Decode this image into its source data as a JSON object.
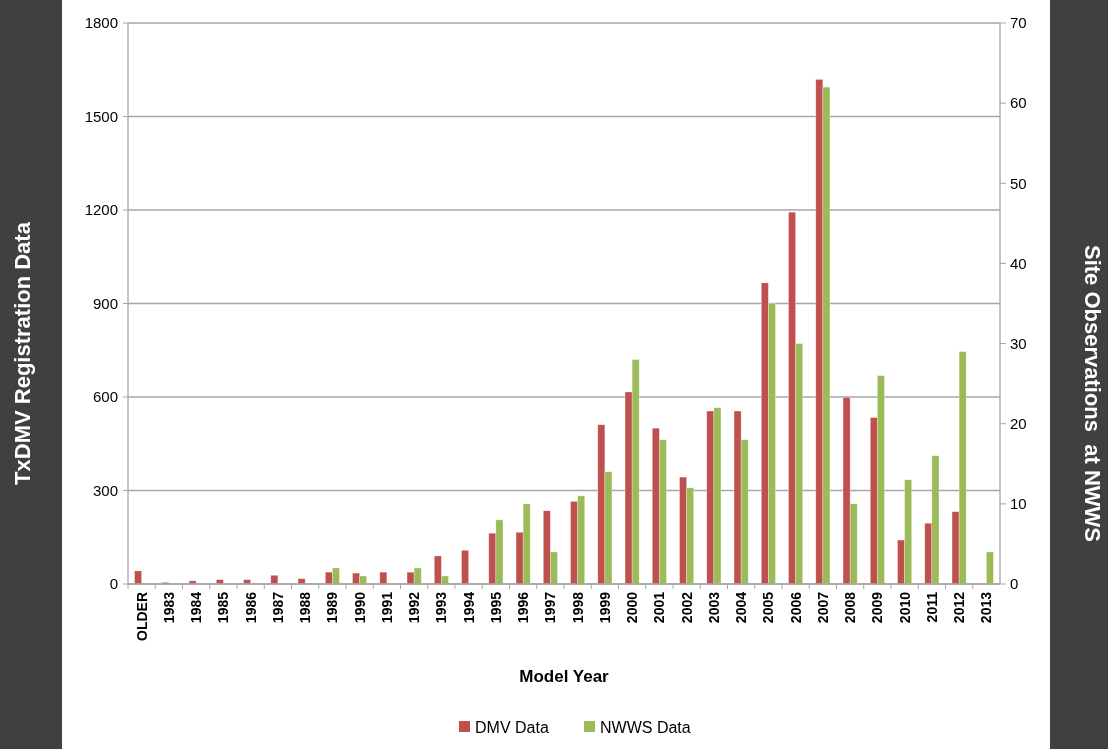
{
  "chart_data": {
    "type": "bar",
    "xlabel": "Model Year",
    "ylabel": "TxDMV Registration Data",
    "y2label": "Site Observations  at NWWS",
    "categories": [
      "OLDER",
      "1983",
      "1984",
      "1985",
      "1986",
      "1987",
      "1988",
      "1989",
      "1990",
      "1991",
      "1992",
      "1993",
      "1994",
      "1995",
      "1996",
      "1997",
      "1998",
      "1999",
      "2000",
      "2001",
      "2002",
      "2003",
      "2004",
      "2005",
      "2006",
      "2007",
      "2008",
      "2009",
      "2010",
      "2011",
      "2012",
      "2013"
    ],
    "series": [
      {
        "name": "DMV Data",
        "color": "#c0504d",
        "values": [
          42,
          5,
          10,
          14,
          14,
          28,
          17,
          38,
          35,
          38,
          38,
          90,
          108,
          163,
          166,
          235,
          265,
          511,
          616,
          500,
          343,
          555,
          555,
          966,
          1193,
          1619,
          599,
          534,
          141,
          195,
          232,
          null
        ]
      },
      {
        "name": "NWWS Data",
        "color": "#9bbb59",
        "axis": "y2",
        "values": [
          null,
          null,
          null,
          null,
          null,
          null,
          null,
          2,
          1,
          null,
          2,
          1,
          null,
          8,
          10,
          4,
          11,
          14,
          28,
          18,
          12,
          22,
          18,
          35,
          30,
          62,
          10,
          26,
          13,
          16,
          29,
          4
        ]
      }
    ],
    "ylim": [
      0,
      1800
    ],
    "yticks": [
      0,
      300,
      600,
      900,
      1200,
      1500,
      1800
    ],
    "y2lim": [
      0,
      70
    ],
    "y2ticks": [
      0,
      10,
      20,
      30,
      40,
      50,
      60,
      70
    ],
    "grid": "y",
    "legend": "bottom"
  }
}
